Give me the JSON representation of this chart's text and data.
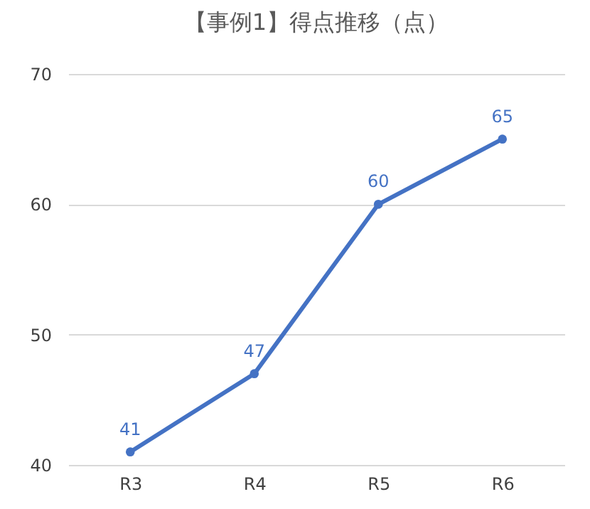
{
  "chart_data": {
    "type": "line",
    "title": "【事例1】得点推移（点）",
    "categories": [
      "R3",
      "R4",
      "R5",
      "R6"
    ],
    "series": [
      {
        "color": "#4472c4",
        "values": [
          41,
          47,
          60,
          65
        ]
      }
    ],
    "ylim": [
      40,
      70
    ],
    "yticks": [
      40,
      50,
      60,
      70
    ],
    "grid": "y",
    "marker": "circle",
    "line_style": "solid",
    "data_labels": true,
    "legend": false
  }
}
